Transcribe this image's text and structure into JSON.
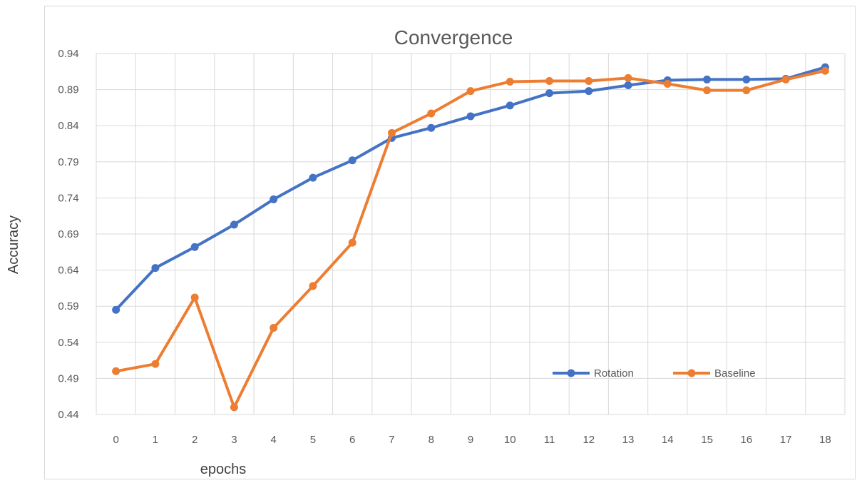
{
  "chart_data": {
    "type": "line",
    "title": "Convergence",
    "xlabel": "epochs",
    "ylabel": "Accuracy",
    "categories": [
      "0",
      "1",
      "2",
      "3",
      "4",
      "5",
      "6",
      "7",
      "8",
      "9",
      "10",
      "11",
      "12",
      "13",
      "14",
      "15",
      "16",
      "17",
      "18"
    ],
    "yticks": [
      "0.44",
      "0.49",
      "0.54",
      "0.59",
      "0.64",
      "0.69",
      "0.74",
      "0.79",
      "0.84",
      "0.89",
      "0.94"
    ],
    "ylim": [
      0.44,
      0.94
    ],
    "grid": true,
    "legend_position": "bottom-right",
    "series": [
      {
        "name": "Rotation",
        "color": "#4472c4",
        "values": [
          0.585,
          0.643,
          0.672,
          0.703,
          0.738,
          0.768,
          0.792,
          0.823,
          0.837,
          0.853,
          0.868,
          0.885,
          0.888,
          0.896,
          0.903,
          0.904,
          0.904,
          0.905,
          0.921
        ]
      },
      {
        "name": "Baseline",
        "color": "#ed7d31",
        "values": [
          0.5,
          0.51,
          0.602,
          0.45,
          0.56,
          0.618,
          0.678,
          0.83,
          0.857,
          0.888,
          0.901,
          0.902,
          0.902,
          0.906,
          0.898,
          0.889,
          0.889,
          0.904,
          0.916
        ]
      }
    ]
  }
}
